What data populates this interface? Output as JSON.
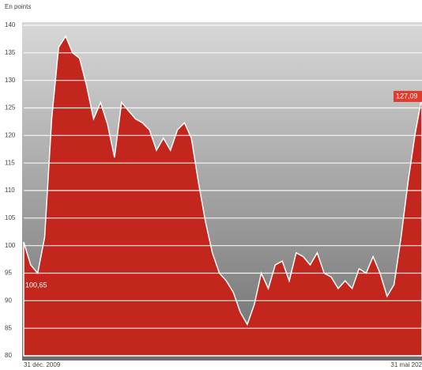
{
  "chart_data": {
    "type": "area",
    "title": "En points",
    "categories": [
      "31 déc. 2009",
      null,
      null,
      null,
      null,
      null,
      null,
      null,
      null,
      null,
      null,
      null,
      null,
      null,
      null,
      null,
      null,
      null,
      null,
      null,
      null,
      null,
      null,
      null,
      null,
      null,
      null,
      null,
      null,
      null,
      null,
      null,
      null,
      null,
      null,
      null,
      null,
      null,
      null,
      null,
      null,
      null,
      null,
      null,
      null,
      null,
      null,
      null,
      null,
      null,
      null,
      null,
      null,
      null,
      null,
      null,
      null,
      "31 mai 202"
    ],
    "values": [
      100.65,
      96.5,
      95,
      101.5,
      123,
      136,
      138,
      135,
      134,
      129,
      123,
      126,
      122,
      116,
      126,
      124.5,
      123,
      122.3,
      121,
      117.3,
      119.5,
      117.3,
      121,
      122.3,
      119.5,
      111.5,
      104.4,
      98.7,
      95,
      93.6,
      91.5,
      87.9,
      85.7,
      89.3,
      95,
      92.2,
      96.5,
      97.2,
      93.6,
      98.7,
      98,
      96.5,
      98.7,
      95,
      94.3,
      92.2,
      93.6,
      92.2,
      95.8,
      95,
      98,
      95,
      90.8,
      92.9,
      101.5,
      111.5,
      120.2,
      127.09
    ],
    "value_labels": [
      "100,65",
      null,
      null,
      null,
      null,
      null,
      null,
      null,
      null,
      null,
      null,
      null,
      null,
      null,
      null,
      null,
      null,
      null,
      null,
      null,
      null,
      null,
      null,
      null,
      null,
      null,
      null,
      null,
      null,
      null,
      null,
      null,
      null,
      null,
      null,
      null,
      null,
      null,
      null,
      null,
      null,
      null,
      null,
      null,
      null,
      null,
      null,
      null,
      null,
      null,
      null,
      null,
      null,
      null,
      null,
      null,
      null,
      "127,09"
    ],
    "color": "#c3261c",
    "ylim": [
      80,
      140
    ],
    "yticks": [
      80,
      85,
      90,
      95,
      100,
      105,
      110,
      115,
      120,
      125,
      130,
      135,
      140
    ],
    "grid": true
  }
}
